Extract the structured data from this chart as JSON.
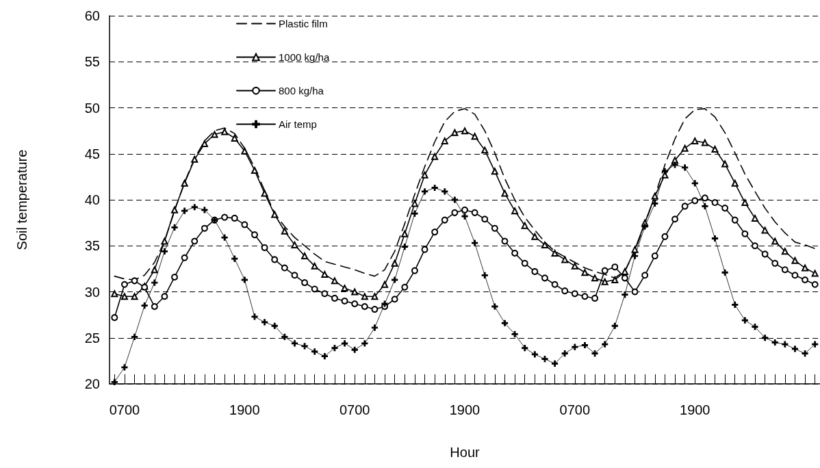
{
  "chart_data": {
    "type": "line",
    "xlabel": "Hour",
    "ylabel": "Soil temperature",
    "categories": [
      null,
      "0700",
      null,
      null,
      null,
      null,
      null,
      null,
      null,
      null,
      null,
      null,
      null,
      "1900",
      null,
      null,
      null,
      null,
      null,
      null,
      null,
      null,
      null,
      null,
      "0700",
      null,
      null,
      null,
      null,
      null,
      null,
      null,
      null,
      null,
      null,
      "1900",
      null,
      null,
      null,
      null,
      null,
      null,
      null,
      null,
      null,
      null,
      "0700",
      null,
      null,
      null,
      null,
      null,
      null,
      null,
      null,
      null,
      null,
      null,
      "1900",
      null,
      null,
      null,
      null,
      null,
      null,
      null,
      null,
      null,
      null,
      null,
      null
    ],
    "ylim": [
      20,
      60
    ],
    "yticks": [
      20,
      25,
      30,
      35,
      40,
      45,
      50,
      55,
      60
    ],
    "grid": "y",
    "legend": "top left",
    "series": [
      {
        "name": "Plastic film",
        "color": "#000000",
        "marker": "none",
        "line_style": "dashed",
        "values": [
          31.7,
          31.4,
          31.3,
          31.8,
          33.2,
          35.5,
          38.8,
          41.9,
          44.5,
          46.4,
          47.5,
          47.8,
          47.2,
          45.6,
          43.5,
          41.0,
          38.5,
          37.1,
          35.9,
          35.0,
          34.1,
          33.3,
          33.0,
          32.7,
          32.4,
          32.0,
          31.7,
          32.4,
          34.4,
          37.4,
          40.6,
          43.6,
          46.3,
          48.5,
          49.6,
          49.9,
          49.3,
          47.5,
          45.1,
          42.3,
          40.0,
          38.1,
          36.7,
          35.4,
          34.4,
          33.8,
          33.2,
          32.6,
          32.2,
          31.9,
          31.5,
          32.3,
          34.4,
          37.4,
          40.4,
          43.8,
          46.6,
          48.8,
          49.8,
          49.9,
          49.0,
          47.3,
          45.1,
          42.8,
          40.9,
          39.1,
          37.6,
          36.4,
          35.4,
          35.1,
          34.7
        ]
      },
      {
        "name": "1000 kg/ha",
        "color": "#000000",
        "marker": "triangle",
        "line_style": "solid",
        "values": [
          29.8,
          29.5,
          29.5,
          30.6,
          32.4,
          35.5,
          38.9,
          41.8,
          44.4,
          46.1,
          47.1,
          47.4,
          46.7,
          45.3,
          43.2,
          40.7,
          38.4,
          36.6,
          35.1,
          33.9,
          32.8,
          31.9,
          31.2,
          30.4,
          30.0,
          29.5,
          29.5,
          30.8,
          33.1,
          36.3,
          39.6,
          42.7,
          44.7,
          46.4,
          47.3,
          47.5,
          46.9,
          45.4,
          43.1,
          40.7,
          38.8,
          37.2,
          36.0,
          35.1,
          34.2,
          33.5,
          32.8,
          32.1,
          31.5,
          31.1,
          31.3,
          32.2,
          34.6,
          37.5,
          40.4,
          42.7,
          44.3,
          45.6,
          46.4,
          46.2,
          45.5,
          43.9,
          41.8,
          39.7,
          38.0,
          36.7,
          35.5,
          34.4,
          33.4,
          32.6,
          32.0
        ]
      },
      {
        "name": "800 kg/ha",
        "color": "#000000",
        "marker": "circle",
        "line_style": "solid",
        "values": [
          27.2,
          30.8,
          31.2,
          30.5,
          28.4,
          29.5,
          31.6,
          33.7,
          35.5,
          36.9,
          37.8,
          38.1,
          38.0,
          37.3,
          36.2,
          34.8,
          33.5,
          32.6,
          31.8,
          31.0,
          30.3,
          29.8,
          29.3,
          29.0,
          28.7,
          28.4,
          28.1,
          28.4,
          29.2,
          30.5,
          32.3,
          34.6,
          36.5,
          37.8,
          38.6,
          38.9,
          38.6,
          37.9,
          36.9,
          35.5,
          34.2,
          33.1,
          32.2,
          31.5,
          30.8,
          30.1,
          29.8,
          29.5,
          29.3,
          32.3,
          32.7,
          31.5,
          30.0,
          31.8,
          33.9,
          36.0,
          37.9,
          39.3,
          39.9,
          40.2,
          39.7,
          39.1,
          37.8,
          36.3,
          35.0,
          34.1,
          33.1,
          32.4,
          31.8,
          31.3,
          30.8
        ]
      },
      {
        "name": "Air temp",
        "color": "#000000",
        "marker": "cross",
        "line_style": "solid",
        "values": [
          20.2,
          21.8,
          25.1,
          28.5,
          31.0,
          34.4,
          37.0,
          38.8,
          39.2,
          38.9,
          37.8,
          35.9,
          33.6,
          31.3,
          27.3,
          26.7,
          26.3,
          25.1,
          24.4,
          24.1,
          23.5,
          23.0,
          23.9,
          24.4,
          23.7,
          24.4,
          26.1,
          28.7,
          31.3,
          34.9,
          38.5,
          40.9,
          41.3,
          40.9,
          40.0,
          38.2,
          35.3,
          31.8,
          28.4,
          26.6,
          25.4,
          23.9,
          23.2,
          22.7,
          22.2,
          23.3,
          24.0,
          24.2,
          23.3,
          24.3,
          26.3,
          29.7,
          33.9,
          37.1,
          39.6,
          43.1,
          43.8,
          43.5,
          41.8,
          39.3,
          35.8,
          32.1,
          28.6,
          26.9,
          26.2,
          25.0,
          24.5,
          24.3,
          23.8,
          23.3,
          24.3
        ]
      }
    ]
  }
}
